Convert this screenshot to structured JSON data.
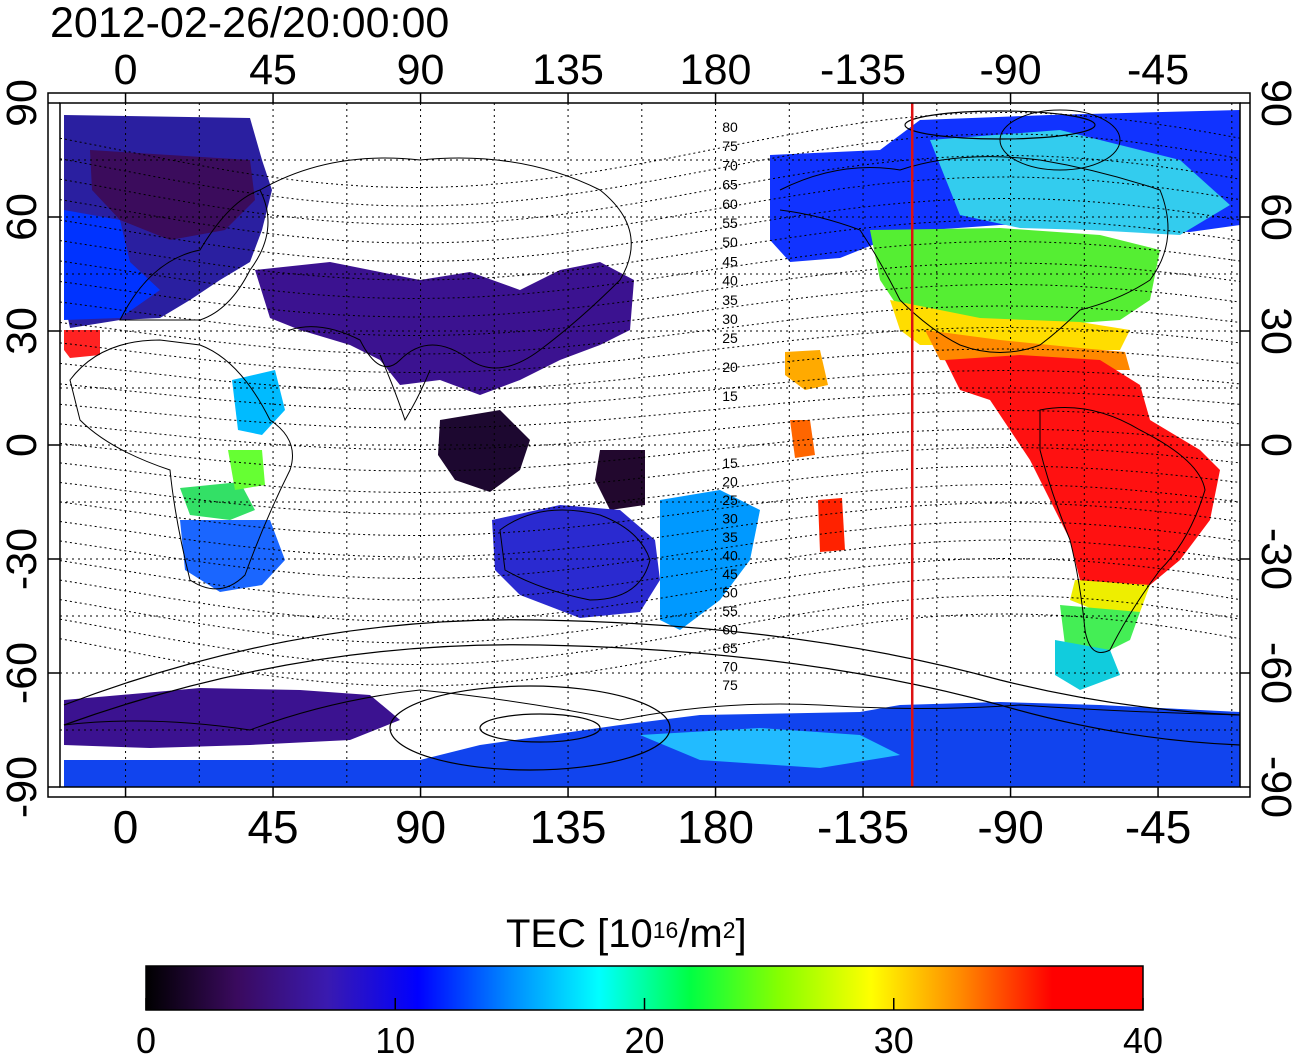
{
  "timestamp": "2012-02-26/20:00:00",
  "map": {
    "lon_ticks_top": [
      "0",
      "45",
      "90",
      "135",
      "180",
      "-135",
      "-90",
      "-45"
    ],
    "lon_ticks_bottom": [
      "0",
      "45",
      "90",
      "135",
      "180",
      "-135",
      "-90",
      "-45"
    ],
    "lat_ticks_left": [
      "90",
      "60",
      "30",
      "0",
      "-30",
      "-60",
      "-90"
    ],
    "lat_ticks_right": [
      "90",
      "60",
      "30",
      "0",
      "-30",
      "-60",
      "-90"
    ],
    "lon_range": [
      -20,
      340
    ],
    "lat_range": [
      -90,
      90
    ],
    "lat_grid_step": 15,
    "lon_grid_step": 22.5,
    "terminator_lon": -120,
    "terminator_color": "#dd1111",
    "contour_labels_north": [
      "80",
      "75",
      "70",
      "65",
      "60",
      "55",
      "50",
      "45",
      "40",
      "35",
      "30",
      "25",
      "20",
      "15"
    ],
    "contour_labels_south": [
      "15",
      "20",
      "25",
      "30",
      "35",
      "40",
      "45",
      "50",
      "55",
      "60",
      "65",
      "70",
      "75"
    ]
  },
  "colorbar": {
    "title_main": "TEC  [10",
    "title_sup1": "16",
    "title_mid": "/m",
    "title_sup2": "2",
    "title_end": "]",
    "min": 0,
    "max": 40,
    "ticks": [
      "0",
      "10",
      "20",
      "30",
      "40"
    ],
    "colors": [
      "#000000",
      "#3a0a5e",
      "#3a1ab0",
      "#0000ff",
      "#0088ff",
      "#00ffff",
      "#00ff44",
      "#88ff00",
      "#ffff00",
      "#ff8800",
      "#ff0000",
      "#ff0000"
    ]
  }
}
